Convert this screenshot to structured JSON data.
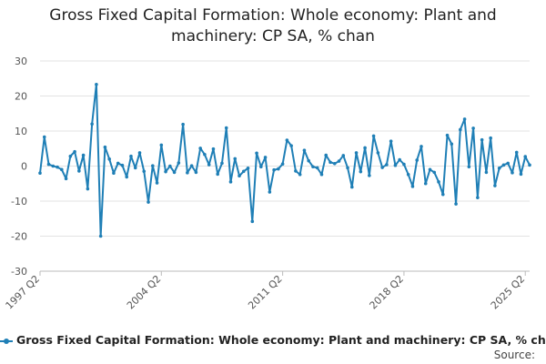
{
  "chart_data": {
    "type": "line",
    "title_lines": [
      "Gross Fixed Capital Formation: Whole economy: Plant and",
      "machinery: CP SA, % chan"
    ],
    "ylabel": "",
    "xlabel": "",
    "ylim": [
      -30,
      30
    ],
    "yticks": [
      30,
      20,
      10,
      0,
      -10,
      -20,
      -30
    ],
    "x_tick_labels": [
      "1997 Q2",
      "2004 Q2",
      "2011 Q2",
      "2018 Q2",
      "2025 Q2"
    ],
    "x_tick_index": [
      0,
      28,
      56,
      84,
      112
    ],
    "grid": true,
    "series": [
      {
        "name": "Gross Fixed Capital Formation: Whole economy: Plant and machinery: CP SA, % chan",
        "color": "#1f7fb6",
        "values": [
          -2,
          8.3,
          0.5,
          0,
          -0.3,
          -1,
          -3.6,
          2.8,
          4.1,
          -1.4,
          3.1,
          -6.5,
          12,
          23.3,
          -20,
          5.4,
          2,
          -2,
          0.8,
          0.2,
          -3.1,
          2.8,
          -0.5,
          3.8,
          -1.5,
          -10.3,
          0.1,
          -4.8,
          6,
          -1.6,
          0,
          -1.8,
          0.9,
          11.9,
          -1.9,
          0.1,
          -1.8,
          5.1,
          3.3,
          0.4,
          4.9,
          -2.3,
          0.8,
          10.9,
          -4.5,
          2.1,
          -2.8,
          -1.5,
          -0.6,
          -15.8,
          3.7,
          -0.2,
          2.5,
          -7.4,
          -1.1,
          -0.8,
          0.6,
          7.4,
          5.8,
          -1.4,
          -2.4,
          4.5,
          1.5,
          -0.2,
          -0.5,
          -2.4,
          3.1,
          1.1,
          0.7,
          1.4,
          3,
          -0.5,
          -6,
          3.8,
          -1.6,
          5.2,
          -2.7,
          8.6,
          3.8,
          -0.4,
          0.4,
          7.1,
          0.2,
          1.8,
          0.5,
          -2.4,
          -5.8,
          1.7,
          5.6,
          -5,
          -1,
          -1.8,
          -4.5,
          -8.1,
          8.8,
          6.3,
          -10.8,
          10.4,
          13.4,
          -0.2,
          10.8,
          -9,
          7.5,
          -1.8,
          8,
          -5.6,
          -0.6,
          0.3,
          0.8,
          -1.9,
          3.9,
          -2.3,
          2.7,
          0.3
        ]
      }
    ]
  },
  "legend": {
    "label": "Gross Fixed Capital Formation: Whole economy: Plant and machinery: CP SA, % chan"
  },
  "source": {
    "label": "Source:"
  }
}
